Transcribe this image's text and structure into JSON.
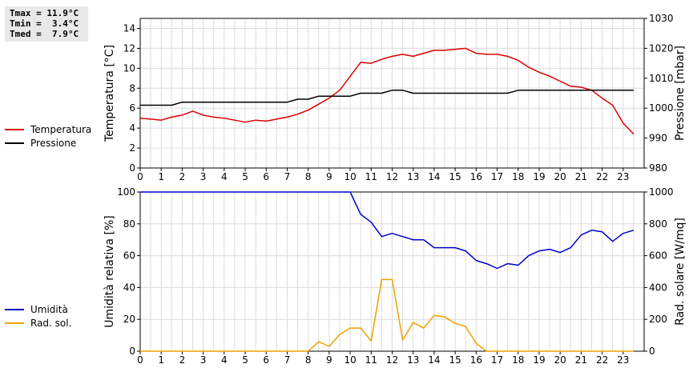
{
  "stats": {
    "tmax": "Tmax = 11.9°C",
    "tmin": "Tmin =  3.4°C",
    "tmed": "Tmed =  7.9°C"
  },
  "chart_data": [
    {
      "type": "line",
      "title": "",
      "xlabel": "",
      "ylabel": "Temperatura [°C]",
      "ylabel_right": "Pressione [mbar]",
      "xlim": [
        0,
        24
      ],
      "x_ticks": [
        "0",
        "1",
        "2",
        "3",
        "4",
        "5",
        "6",
        "7",
        "8",
        "9",
        "10",
        "11",
        "12",
        "13",
        "14",
        "15",
        "16",
        "17",
        "18",
        "19",
        "20",
        "21",
        "22",
        "23"
      ],
      "ylim": [
        0,
        15
      ],
      "y_ticks": [
        "0",
        "2",
        "4",
        "6",
        "8",
        "10",
        "12",
        "14"
      ],
      "ylim_right": [
        980,
        1030
      ],
      "y_ticks_right": [
        "980",
        "990",
        "1000",
        "1010",
        "1020",
        "1030"
      ],
      "grid": true,
      "legend_position": "left",
      "series": [
        {
          "name": "Temperatura",
          "color": "#dd0000",
          "axis": "left",
          "x": [
            0,
            0.5,
            1,
            1.5,
            2,
            2.5,
            3,
            3.5,
            4,
            4.5,
            5,
            5.5,
            6,
            6.5,
            7,
            7.5,
            8,
            8.5,
            9,
            9.5,
            10,
            10.5,
            11,
            11.5,
            12,
            12.5,
            13,
            13.5,
            14,
            14.5,
            15,
            15.5,
            16,
            16.5,
            17,
            17.5,
            18,
            18.5,
            19,
            19.5,
            20,
            20.5,
            21,
            21.5,
            22,
            22.5,
            23,
            23.5
          ],
          "y": [
            5.0,
            4.9,
            4.8,
            5.1,
            5.3,
            5.7,
            5.3,
            5.1,
            5.0,
            4.8,
            4.6,
            4.8,
            4.7,
            4.9,
            5.1,
            5.4,
            5.8,
            6.4,
            7.0,
            7.8,
            9.2,
            10.6,
            10.5,
            10.9,
            11.2,
            11.4,
            11.2,
            11.5,
            11.8,
            11.8,
            11.9,
            12.0,
            11.5,
            11.4,
            11.4,
            11.2,
            10.8,
            10.1,
            9.6,
            9.2,
            8.7,
            8.2,
            8.1,
            7.8,
            7.0,
            6.3,
            4.5,
            3.4
          ]
        },
        {
          "name": "Pressione",
          "color": "#000000",
          "axis": "right",
          "x": [
            0,
            0.5,
            1,
            1.5,
            2,
            2.5,
            3,
            3.5,
            4,
            4.5,
            5,
            5.5,
            6,
            6.5,
            7,
            7.5,
            8,
            8.5,
            9,
            9.5,
            10,
            10.5,
            11,
            11.5,
            12,
            12.5,
            13,
            13.5,
            14,
            14.5,
            15,
            15.5,
            16,
            16.5,
            17,
            17.5,
            18,
            18.5,
            19,
            19.5,
            20,
            20.5,
            21,
            21.5,
            22,
            22.5,
            23,
            23.5
          ],
          "y": [
            1001,
            1001,
            1001,
            1001,
            1002,
            1002,
            1002,
            1002,
            1002,
            1002,
            1002,
            1002,
            1002,
            1002,
            1002,
            1003,
            1003,
            1004,
            1004,
            1004,
            1004,
            1005,
            1005,
            1005,
            1006,
            1006,
            1005,
            1005,
            1005,
            1005,
            1005,
            1005,
            1005,
            1005,
            1005,
            1005,
            1006,
            1006,
            1006,
            1006,
            1006,
            1006,
            1006,
            1006,
            1006,
            1006,
            1006,
            1006
          ]
        }
      ]
    },
    {
      "type": "line",
      "title": "",
      "xlabel": "",
      "ylabel": "Umidità relativa [%]",
      "ylabel_right": "Rad. solare [W/mq]",
      "xlim": [
        0,
        24
      ],
      "x_ticks": [
        "0",
        "1",
        "2",
        "3",
        "4",
        "5",
        "6",
        "7",
        "8",
        "9",
        "10",
        "11",
        "12",
        "13",
        "14",
        "15",
        "16",
        "17",
        "18",
        "19",
        "20",
        "21",
        "22",
        "23"
      ],
      "ylim": [
        0,
        100
      ],
      "y_ticks": [
        "0",
        "20",
        "40",
        "60",
        "80",
        "100"
      ],
      "ylim_right": [
        0,
        1000
      ],
      "y_ticks_right": [
        "0",
        "200",
        "400",
        "600",
        "800",
        "1000"
      ],
      "grid": true,
      "legend_position": "left",
      "series": [
        {
          "name": "Umidità",
          "color": "#0000cc",
          "axis": "left",
          "x": [
            0,
            0.5,
            1,
            1.5,
            2,
            2.5,
            3,
            3.5,
            4,
            4.5,
            5,
            5.5,
            6,
            6.5,
            7,
            7.5,
            8,
            8.5,
            9,
            9.5,
            10,
            10.5,
            11,
            11.5,
            12,
            12.5,
            13,
            13.5,
            14,
            14.5,
            15,
            15.5,
            16,
            16.5,
            17,
            17.5,
            18,
            18.5,
            19,
            19.5,
            20,
            20.5,
            21,
            21.5,
            22,
            22.5,
            23,
            23.5
          ],
          "y": [
            100,
            100,
            100,
            100,
            100,
            100,
            100,
            100,
            100,
            100,
            100,
            100,
            100,
            100,
            100,
            100,
            100,
            100,
            100,
            100,
            100,
            86,
            81,
            72,
            74,
            72,
            70,
            70,
            65,
            65,
            65,
            63,
            57,
            55,
            52,
            55,
            54,
            60,
            63,
            64,
            62,
            65,
            73,
            76,
            75,
            69,
            74,
            76
          ]
        },
        {
          "name": "Rad. sol.",
          "color": "#f0a000",
          "axis": "right",
          "x": [
            0,
            0.5,
            1,
            1.5,
            2,
            2.5,
            3,
            3.5,
            4,
            4.5,
            5,
            5.5,
            6,
            6.5,
            7,
            7.5,
            8,
            8.5,
            9,
            9.5,
            10,
            10.5,
            11,
            11.5,
            12,
            12.5,
            13,
            13.5,
            14,
            14.5,
            15,
            15.5,
            16,
            16.5,
            17,
            17.5,
            18,
            18.5,
            19,
            19.5,
            20,
            20.5,
            21,
            21.5,
            22,
            22.5,
            23,
            23.5
          ],
          "y": [
            0,
            0,
            0,
            0,
            0,
            0,
            0,
            0,
            0,
            0,
            0,
            0,
            0,
            0,
            0,
            0,
            0,
            60,
            30,
            105,
            145,
            145,
            65,
            450,
            450,
            70,
            180,
            145,
            225,
            215,
            175,
            155,
            50,
            0,
            0,
            0,
            0,
            0,
            0,
            0,
            0,
            0,
            0,
            0,
            0,
            0,
            0,
            0
          ]
        }
      ]
    }
  ]
}
